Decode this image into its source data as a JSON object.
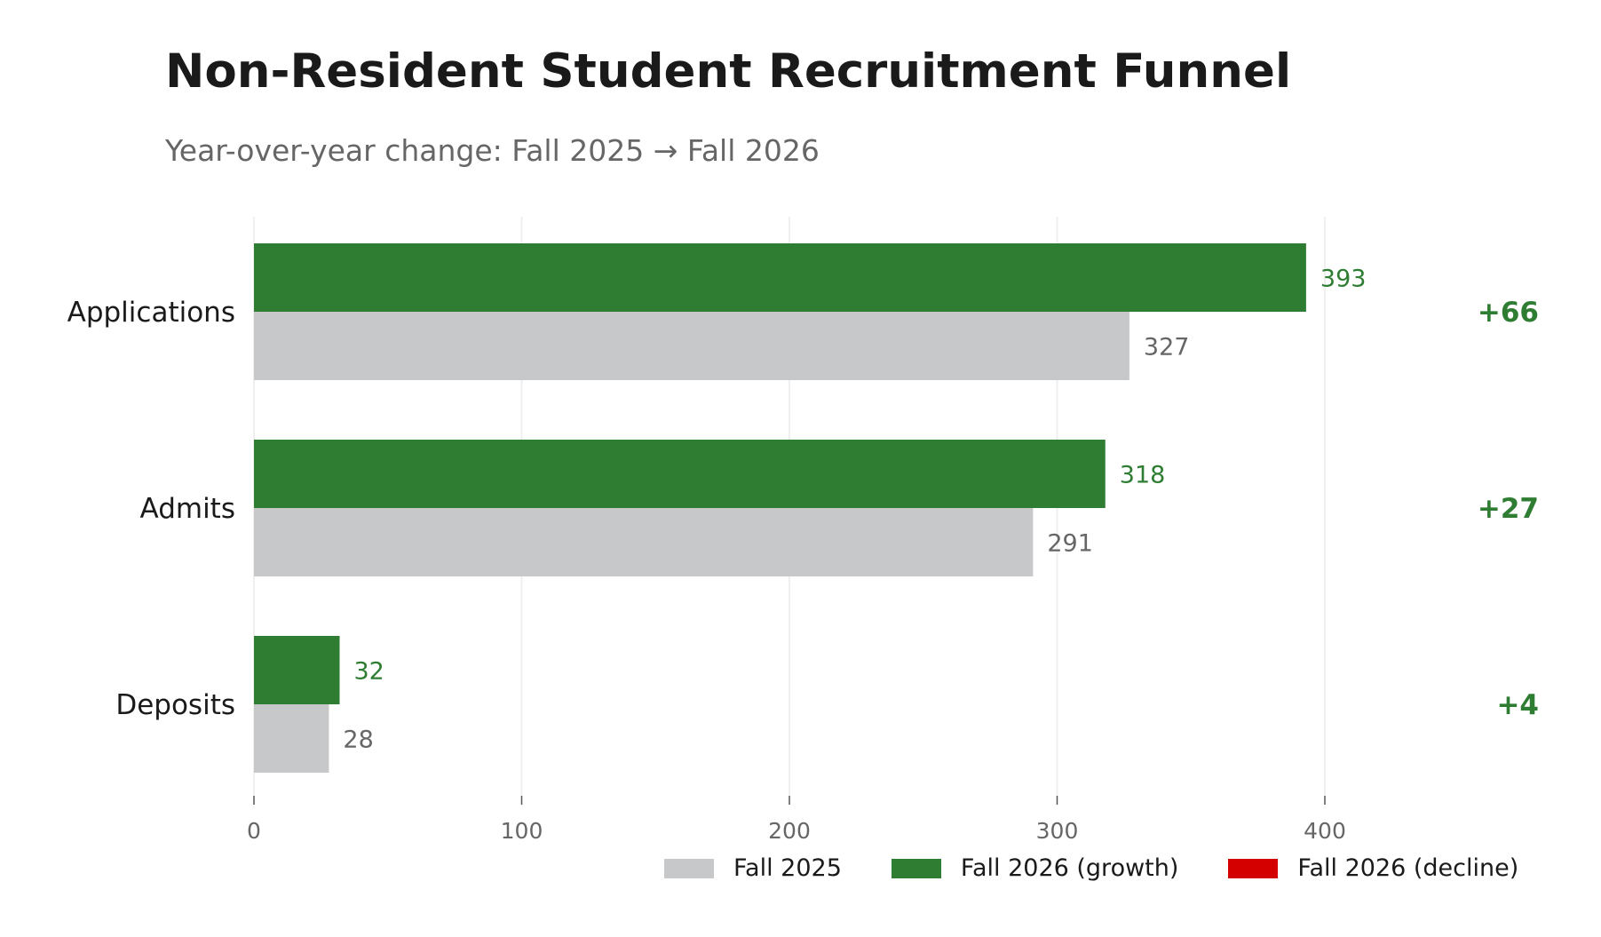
{
  "chart_data": {
    "type": "bar",
    "orientation": "horizontal",
    "title": "Non-Resident Student Recruitment Funnel",
    "subtitle": "Year-over-year change: Fall 2025 → Fall 2026",
    "categories": [
      "Applications",
      "Admits",
      "Deposits"
    ],
    "series": [
      {
        "name": "Fall 2025",
        "values": [
          327,
          291,
          28
        ],
        "color": "#c7c8ca"
      },
      {
        "name": "Fall 2026 (growth)",
        "values": [
          393,
          318,
          32
        ],
        "color": "#2e7d32"
      }
    ],
    "legend": [
      {
        "label": "Fall 2025",
        "color": "#c7c8ca"
      },
      {
        "label": "Fall 2026 (growth)",
        "color": "#2e7d32"
      },
      {
        "label": "Fall 2026 (decline)",
        "color": "#d40000"
      }
    ],
    "changes": [
      "+66",
      "+27",
      "+4"
    ],
    "change_color": "#2e7d32",
    "xlim": [
      0,
      480
    ],
    "xticks": [
      0,
      100,
      200,
      300,
      400
    ],
    "grid": true,
    "legend_placement": "bottom-right",
    "xlabel": "",
    "ylabel": ""
  }
}
